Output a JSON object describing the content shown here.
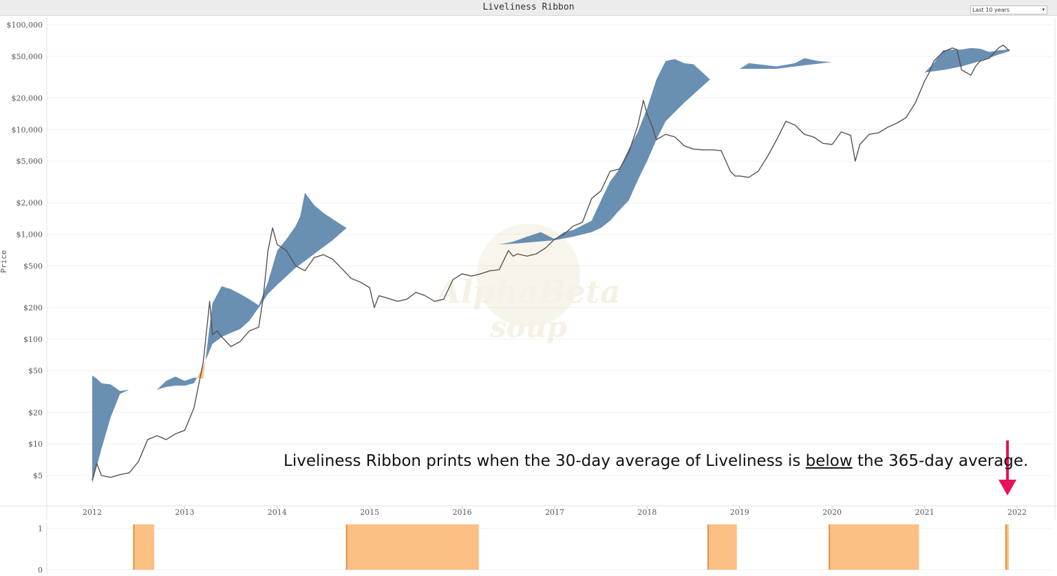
{
  "title": "Liveliness Ribbon",
  "range_selector": {
    "value": "Last 10 years"
  },
  "annotation": {
    "before": "Liveliness Ribbon prints when the 30-day average of Liveliness is ",
    "underlined": "below",
    "after": " the 365-day average."
  },
  "watermark": {
    "text_line1": "AlphaBeta",
    "text_line2": "soup"
  },
  "colors": {
    "bull_ribbon": "#4f7ba6",
    "bear_ribbon": "#fcbf84",
    "price": "#5a5050",
    "arrow": "#e8115b",
    "signal": "#fcbf84",
    "signal_edge": "#e0913f"
  },
  "chart_data": [
    {
      "type": "area",
      "title": "Liveliness Ribbon",
      "ylabel": "Price",
      "yscale": "log",
      "ylim": [
        3,
        100000
      ],
      "xlim": [
        2012.0,
        2022.0
      ],
      "y_ticks": [
        {
          "value": 100000,
          "label": "$100,000"
        },
        {
          "value": 50000,
          "label": "$50,000"
        },
        {
          "value": 20000,
          "label": "$20,000"
        },
        {
          "value": 10000,
          "label": "$10,000"
        },
        {
          "value": 5000,
          "label": "$5,000"
        },
        {
          "value": 2000,
          "label": "$2,000"
        },
        {
          "value": 1000,
          "label": "$1,000"
        },
        {
          "value": 500,
          "label": "$500"
        },
        {
          "value": 200,
          "label": "$200"
        },
        {
          "value": 100,
          "label": "$100"
        },
        {
          "value": 50,
          "label": "$50"
        },
        {
          "value": 20,
          "label": "$20"
        },
        {
          "value": 10,
          "label": "$10"
        },
        {
          "value": 5,
          "label": "$5"
        }
      ],
      "x_ticks": [
        "2012",
        "2013",
        "2014",
        "2015",
        "2016",
        "2017",
        "2018",
        "2019",
        "2020",
        "2021",
        "2022"
      ],
      "series": [
        {
          "key": "price",
          "x": [
            2012.0,
            2012.05,
            2012.1,
            2012.2,
            2012.3,
            2012.4,
            2012.5,
            2012.6,
            2012.7,
            2012.8,
            2012.9,
            2013.0,
            2013.1,
            2013.2,
            2013.27,
            2013.3,
            2013.35,
            2013.4,
            2013.5,
            2013.6,
            2013.7,
            2013.8,
            2013.85,
            2013.9,
            2013.95,
            2014.0,
            2014.1,
            2014.2,
            2014.3,
            2014.4,
            2014.5,
            2014.6,
            2014.7,
            2014.8,
            2014.9,
            2015.0,
            2015.05,
            2015.1,
            2015.2,
            2015.3,
            2015.4,
            2015.5,
            2015.6,
            2015.7,
            2015.8,
            2015.9,
            2016.0,
            2016.1,
            2016.2,
            2016.3,
            2016.4,
            2016.5,
            2016.55,
            2016.6,
            2016.7,
            2016.8,
            2016.9,
            2017.0,
            2017.1,
            2017.2,
            2017.3,
            2017.4,
            2017.5,
            2017.6,
            2017.7,
            2017.8,
            2017.9,
            2017.96,
            2018.0,
            2018.05,
            2018.1,
            2018.2,
            2018.3,
            2018.4,
            2018.5,
            2018.6,
            2018.7,
            2018.8,
            2018.9,
            2018.95,
            2019.0,
            2019.1,
            2019.2,
            2019.3,
            2019.4,
            2019.5,
            2019.6,
            2019.7,
            2019.8,
            2019.9,
            2020.0,
            2020.1,
            2020.2,
            2020.25,
            2020.3,
            2020.4,
            2020.5,
            2020.6,
            2020.7,
            2020.8,
            2020.9,
            2021.0,
            2021.05,
            2021.1,
            2021.2,
            2021.3,
            2021.35,
            2021.4,
            2021.45,
            2021.5,
            2021.55,
            2021.6,
            2021.7,
            2021.8,
            2021.85,
            2021.9,
            2021.92
          ],
          "values": [
            4.5,
            6.5,
            5.0,
            4.8,
            5.1,
            5.3,
            6.8,
            11,
            12,
            11,
            12.5,
            13.5,
            22,
            60,
            230,
            110,
            120,
            105,
            85,
            95,
            120,
            130,
            250,
            700,
            1150,
            800,
            700,
            500,
            450,
            600,
            640,
            580,
            470,
            380,
            350,
            310,
            200,
            260,
            245,
            230,
            240,
            280,
            260,
            230,
            240,
            370,
            420,
            400,
            420,
            450,
            460,
            700,
            620,
            650,
            620,
            650,
            740,
            900,
            1000,
            1200,
            1300,
            2200,
            2600,
            4000,
            4200,
            6000,
            11000,
            19000,
            14000,
            11000,
            8000,
            9000,
            8500,
            7000,
            6500,
            6400,
            6400,
            6300,
            4000,
            3600,
            3600,
            3500,
            4000,
            5500,
            8000,
            12000,
            11000,
            9000,
            8500,
            7400,
            7200,
            9500,
            8800,
            5000,
            7200,
            9000,
            9300,
            10500,
            11500,
            13000,
            18000,
            29000,
            35000,
            45000,
            55000,
            60000,
            58000,
            37000,
            35000,
            33000,
            40000,
            45000,
            48000,
            60000,
            64000,
            58000,
            57000
          ]
        },
        {
          "key": "ribbon_upper",
          "x": [
            2012.0,
            2012.05,
            2012.1,
            2012.2,
            2012.3,
            2012.4,
            2012.5,
            2012.6,
            2012.7,
            2012.8,
            2012.9,
            2013.0,
            2013.1,
            2013.2,
            2013.3,
            2013.4,
            2013.5,
            2013.6,
            2013.7,
            2013.8,
            2013.9,
            2014.0,
            2014.1,
            2014.2,
            2014.25,
            2014.3,
            2014.4,
            2014.5,
            2014.6,
            2014.75,
            2014.9,
            2015.0,
            2015.2,
            2015.4,
            2015.6,
            2015.8,
            2016.0,
            2016.2,
            2016.4,
            2016.55,
            2016.7,
            2016.85,
            2017.0,
            2017.1,
            2017.2,
            2017.4,
            2017.5,
            2017.6,
            2017.7,
            2017.8,
            2017.9,
            2018.0,
            2018.1,
            2018.2,
            2018.3,
            2018.4,
            2018.5,
            2018.6,
            2018.68,
            2018.8,
            2018.95,
            2019.0,
            2019.1,
            2019.2,
            2019.4,
            2019.6,
            2019.7,
            2019.85,
            2020.0,
            2020.2,
            2020.4,
            2020.6,
            2020.8,
            2020.95,
            2021.0,
            2021.1,
            2021.2,
            2021.3,
            2021.4,
            2021.5,
            2021.6,
            2021.7,
            2021.8,
            2021.9,
            2021.92
          ],
          "values": [
            45,
            42,
            38,
            37,
            32,
            33,
            33,
            31,
            33,
            40,
            44,
            40,
            43,
            42,
            220,
            320,
            300,
            270,
            240,
            210,
            350,
            700,
            900,
            1200,
            1500,
            2500,
            1900,
            1600,
            1400,
            1150,
            1200,
            1400,
            1400,
            1200,
            1000,
            850,
            800,
            780,
            800,
            850,
            950,
            1050,
            900,
            1050,
            1100,
            1350,
            2100,
            3200,
            4200,
            6500,
            9500,
            16000,
            30000,
            45000,
            47000,
            43000,
            42000,
            35000,
            30000,
            27000,
            24000,
            38000,
            43000,
            42000,
            40000,
            43000,
            48000,
            45000,
            44000,
            42000,
            40000,
            37000,
            34000,
            32000,
            35000,
            43000,
            57000,
            58000,
            58000,
            60000,
            59000,
            55000,
            57000,
            58000,
            56000
          ]
        },
        {
          "key": "ribbon_lower",
          "x": [
            2012.0,
            2012.1,
            2012.2,
            2012.3,
            2012.4,
            2012.5,
            2012.6,
            2012.7,
            2012.8,
            2012.9,
            2013.0,
            2013.1,
            2013.2,
            2013.3,
            2013.4,
            2013.5,
            2013.6,
            2013.7,
            2013.8,
            2013.9,
            2014.0,
            2014.2,
            2014.4,
            2014.6,
            2014.75,
            2014.9,
            2015.0,
            2015.2,
            2015.4,
            2015.6,
            2015.8,
            2016.0,
            2016.2,
            2016.4,
            2016.6,
            2016.8,
            2017.0,
            2017.2,
            2017.4,
            2017.5,
            2017.6,
            2017.7,
            2017.8,
            2017.9,
            2018.0,
            2018.1,
            2018.2,
            2018.4,
            2018.6,
            2018.68,
            2018.8,
            2018.95,
            2019.0,
            2019.2,
            2019.4,
            2019.6,
            2019.8,
            2020.0,
            2020.2,
            2020.4,
            2020.6,
            2020.8,
            2020.95,
            2021.0,
            2021.2,
            2021.4,
            2021.6,
            2021.8,
            2021.92
          ],
          "values": [
            4.2,
            9,
            18,
            30,
            33,
            33,
            31,
            33,
            35,
            36,
            36,
            38,
            55,
            90,
            105,
            115,
            125,
            150,
            200,
            270,
            330,
            480,
            650,
            880,
            1150,
            1200,
            1400,
            1400,
            1200,
            1000,
            850,
            800,
            780,
            800,
            820,
            850,
            880,
            950,
            1050,
            1150,
            1350,
            1700,
            2100,
            3300,
            5000,
            8000,
            12000,
            18000,
            26000,
            30000,
            27000,
            24000,
            38000,
            38000,
            38000,
            40000,
            42000,
            44000,
            42000,
            40000,
            37000,
            34000,
            32000,
            35000,
            37000,
            40000,
            45000,
            52000,
            56000
          ]
        }
      ]
    },
    {
      "type": "bar",
      "ylim": [
        0,
        1
      ],
      "y_ticks": [
        {
          "value": 1,
          "label": "1"
        },
        {
          "value": 0,
          "label": "0"
        }
      ],
      "signal_periods": [
        {
          "start": 2012.45,
          "end": 2012.67
        },
        {
          "start": 2014.75,
          "end": 2016.18
        },
        {
          "start": 2018.66,
          "end": 2018.97
        },
        {
          "start": 2019.97,
          "end": 2020.94
        },
        {
          "start": 2021.88,
          "end": 2021.91
        }
      ]
    }
  ]
}
